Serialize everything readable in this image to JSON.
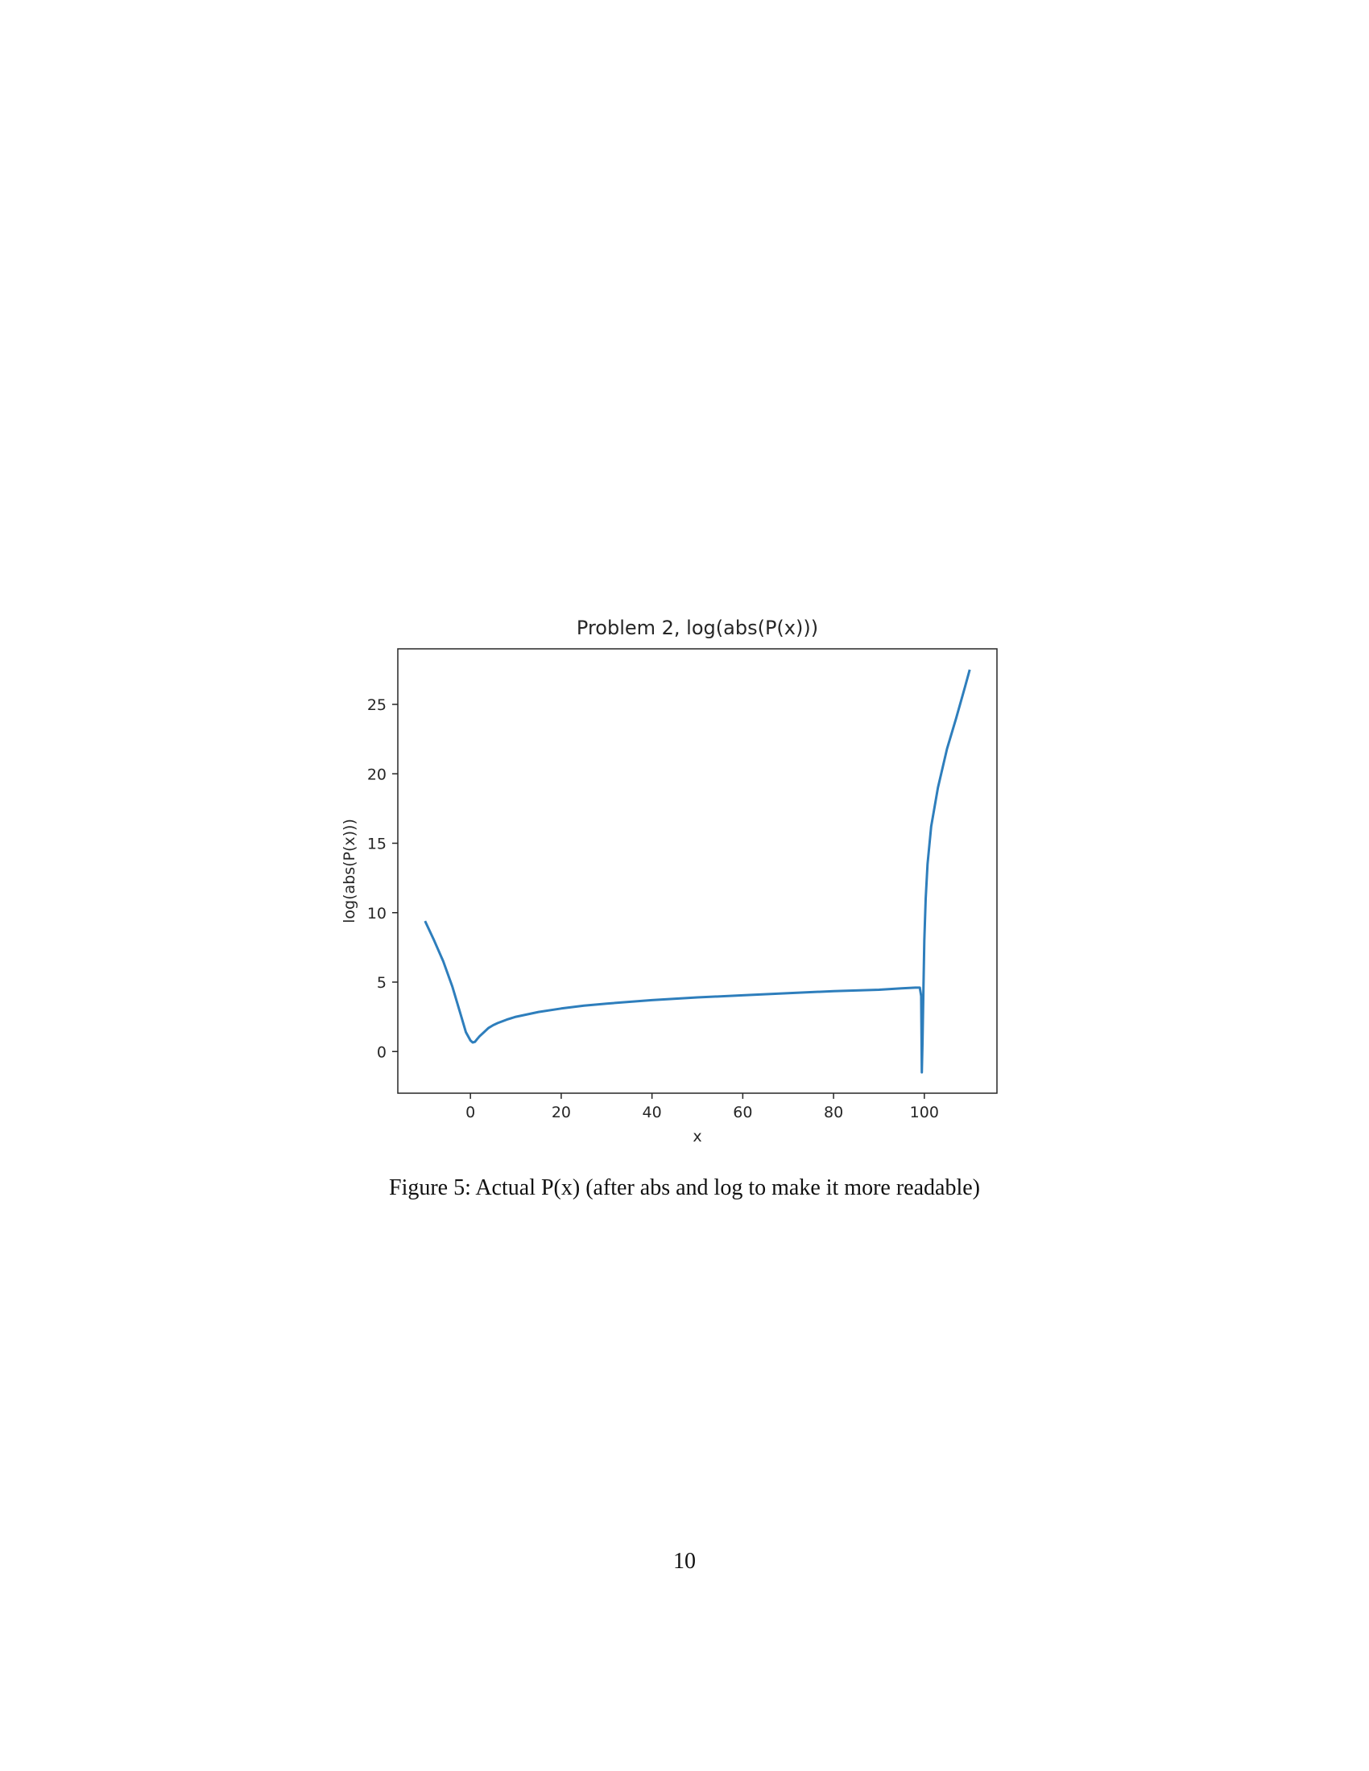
{
  "chart_data": {
    "type": "line",
    "title": "Problem 2, log(abs(P(x)))",
    "xlabel": "x",
    "ylabel": "log(abs(P(x)))",
    "xlim": [
      -16,
      116
    ],
    "ylim": [
      -3,
      29
    ],
    "xticks": [
      0,
      20,
      40,
      60,
      80,
      100
    ],
    "yticks": [
      0,
      5,
      10,
      15,
      20,
      25
    ],
    "grid": false,
    "color": "#2e7ebc",
    "series": [
      {
        "x": [
          -10,
          -8,
          -6,
          -4,
          -2,
          -1,
          0,
          0.5,
          1,
          1.5,
          2,
          3,
          4,
          5,
          6,
          8,
          10,
          15,
          20,
          25,
          30,
          40,
          50,
          60,
          70,
          80,
          90,
          95,
          98,
          99,
          99.3,
          99.45,
          99.6,
          99.8,
          100,
          100.3,
          100.7,
          101.5,
          103,
          105,
          107,
          109,
          110
        ],
        "y": [
          9.4,
          8.0,
          6.5,
          4.7,
          2.5,
          1.4,
          0.8,
          0.65,
          0.7,
          0.9,
          1.1,
          1.4,
          1.7,
          1.9,
          2.05,
          2.3,
          2.5,
          2.85,
          3.1,
          3.3,
          3.45,
          3.7,
          3.9,
          4.05,
          4.2,
          4.35,
          4.45,
          4.55,
          4.6,
          4.6,
          4.0,
          -1.5,
          0.8,
          4.5,
          8.0,
          11.0,
          13.5,
          16.2,
          19.0,
          21.8,
          24.0,
          26.3,
          27.5
        ]
      }
    ]
  },
  "caption": "Figure 5: Actual P(x) (after abs and log to make it more readable)",
  "page_number": "10"
}
